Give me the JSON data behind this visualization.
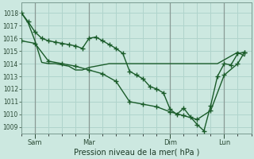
{
  "xlabel": "Pression niveau de la mer( hPa )",
  "background_color": "#cce8e0",
  "plot_bg_color": "#cce8e0",
  "grid_color": "#b0d4cc",
  "line_color": "#1a5c2a",
  "ylim": [
    1008.5,
    1018.8
  ],
  "yticks": [
    1009,
    1010,
    1011,
    1012,
    1013,
    1014,
    1015,
    1016,
    1017,
    1018
  ],
  "day_labels": [
    "Sam",
    "Mar",
    "Dim",
    "Lun"
  ],
  "day_positions": [
    0.5,
    2.5,
    5.5,
    7.5
  ],
  "xlim": [
    0.0,
    8.5
  ],
  "xtick_minor_positions": [
    0.0,
    0.5,
    1.0,
    1.5,
    2.0,
    2.5,
    3.0,
    3.5,
    4.0,
    4.5,
    5.0,
    5.5,
    6.0,
    6.5,
    7.0,
    7.5,
    8.0,
    8.5
  ],
  "vline_color": "#b0b0b0",
  "series1_x": [
    0.0,
    0.25,
    0.5,
    0.75,
    1.0,
    1.25,
    1.5,
    1.75,
    2.0,
    2.25,
    2.5,
    2.75,
    3.0,
    3.25,
    3.5,
    3.75,
    4.0,
    4.25,
    4.5,
    4.75,
    5.0,
    5.25,
    5.5,
    5.75,
    6.0,
    6.25,
    6.5,
    6.75,
    7.0,
    7.25,
    7.5,
    7.75,
    8.0,
    8.25
  ],
  "series1_y": [
    1018.0,
    1017.2,
    1015.8,
    1014.1,
    1014.0,
    1014.0,
    1013.9,
    1013.8,
    1013.5,
    1013.5,
    1013.7,
    1013.8,
    1013.9,
    1014.0,
    1014.0,
    1014.0,
    1014.0,
    1014.0,
    1014.0,
    1014.0,
    1014.0,
    1014.0,
    1014.0,
    1014.0,
    1014.0,
    1014.0,
    1014.0,
    1014.0,
    1014.0,
    1014.0,
    1014.3,
    1014.6,
    1014.9,
    1014.6
  ],
  "series2_x": [
    0.0,
    0.5,
    1.0,
    1.5,
    2.0,
    2.5,
    3.0,
    3.5,
    4.0,
    4.5,
    5.0,
    5.5,
    6.0,
    6.5,
    7.0,
    7.5,
    8.0,
    8.25
  ],
  "series2_y": [
    1015.8,
    1015.6,
    1014.2,
    1014.0,
    1013.8,
    1013.5,
    1013.2,
    1012.6,
    1011.0,
    1010.8,
    1010.6,
    1010.2,
    1009.9,
    1009.6,
    1010.3,
    1013.1,
    1014.0,
    1014.9
  ],
  "series3_x": [
    0.0,
    0.25,
    0.5,
    0.75,
    1.0,
    1.25,
    1.5,
    1.75,
    2.0,
    2.25,
    2.5,
    2.75,
    3.0,
    3.25,
    3.5,
    3.75,
    4.0,
    4.25,
    4.5,
    4.75,
    5.0,
    5.25,
    5.5,
    5.75,
    6.0,
    6.25,
    6.5,
    6.75,
    7.0,
    7.25,
    7.5,
    7.75,
    8.0,
    8.25
  ],
  "series3_y": [
    1018.0,
    1017.3,
    1016.5,
    1016.0,
    1015.8,
    1015.7,
    1015.6,
    1015.5,
    1015.4,
    1015.2,
    1016.0,
    1016.1,
    1015.8,
    1015.5,
    1015.2,
    1014.8,
    1013.4,
    1013.1,
    1012.8,
    1012.2,
    1012.0,
    1011.7,
    1010.4,
    1010.0,
    1010.5,
    1009.8,
    1009.2,
    1008.7,
    1010.7,
    1013.0,
    1014.0,
    1013.9,
    1014.8,
    1014.9
  ],
  "vline_positions": [
    0.5,
    2.5,
    5.5,
    7.5
  ]
}
